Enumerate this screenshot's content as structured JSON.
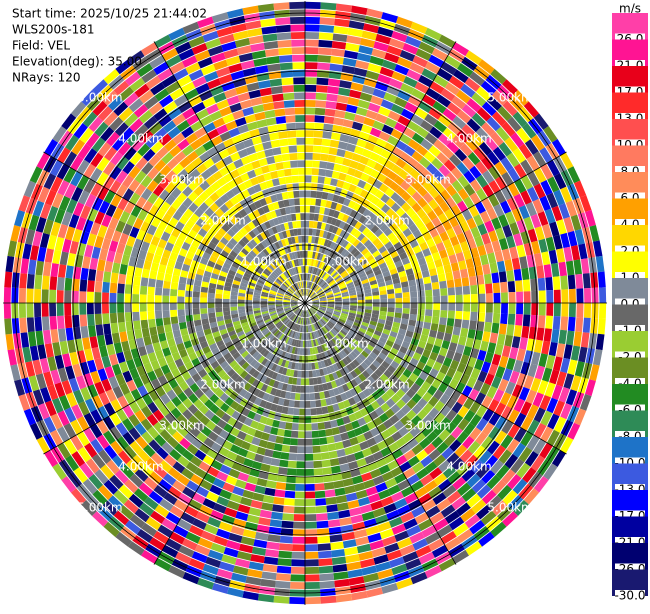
{
  "header": {
    "lines": [
      "Start time: 2025/10/25 21:44:02",
      "WLS200s-181",
      "Field: VEL",
      "Elevation(deg): 35.00",
      "NRays: 120"
    ]
  },
  "range_rings": [
    "1.00km",
    "2.00km",
    "3.00km",
    "4.00km",
    "5.00km"
  ],
  "colorbar": {
    "unit": "m/s",
    "levels": [
      {
        "label": "26.0",
        "color": "#ff3fa8"
      },
      {
        "label": "21.0",
        "color": "#ff1493"
      },
      {
        "label": "17.0",
        "color": "#e8001a"
      },
      {
        "label": "13.0",
        "color": "#ff2a2a"
      },
      {
        "label": "10.0",
        "color": "#ff4f4f"
      },
      {
        "label": "8.0",
        "color": "#ff7a60"
      },
      {
        "label": "6.0",
        "color": "#ff8c5a"
      },
      {
        "label": "4.0",
        "color": "#ffa000"
      },
      {
        "label": "2.0",
        "color": "#ffd700"
      },
      {
        "label": "1.0",
        "color": "#ffff00"
      },
      {
        "label": "0.0",
        "color": "#7f8a99"
      },
      {
        "label": "-1.0",
        "color": "#686868"
      },
      {
        "label": "-2.0",
        "color": "#9acd32"
      },
      {
        "label": "-4.0",
        "color": "#6b8e23"
      },
      {
        "label": "-6.0",
        "color": "#228b22"
      },
      {
        "label": "-8.0",
        "color": "#2e8b57"
      },
      {
        "label": "-10.0",
        "color": "#1e73c8"
      },
      {
        "label": "-13.0",
        "color": "#3c5ae0"
      },
      {
        "label": "-17.0",
        "color": "#0000ff"
      },
      {
        "label": "-21.0",
        "color": "#0000a0"
      },
      {
        "label": "-26.0",
        "color": "#000070"
      },
      {
        "label": "-30.0",
        "color": "#191970"
      }
    ]
  }
}
